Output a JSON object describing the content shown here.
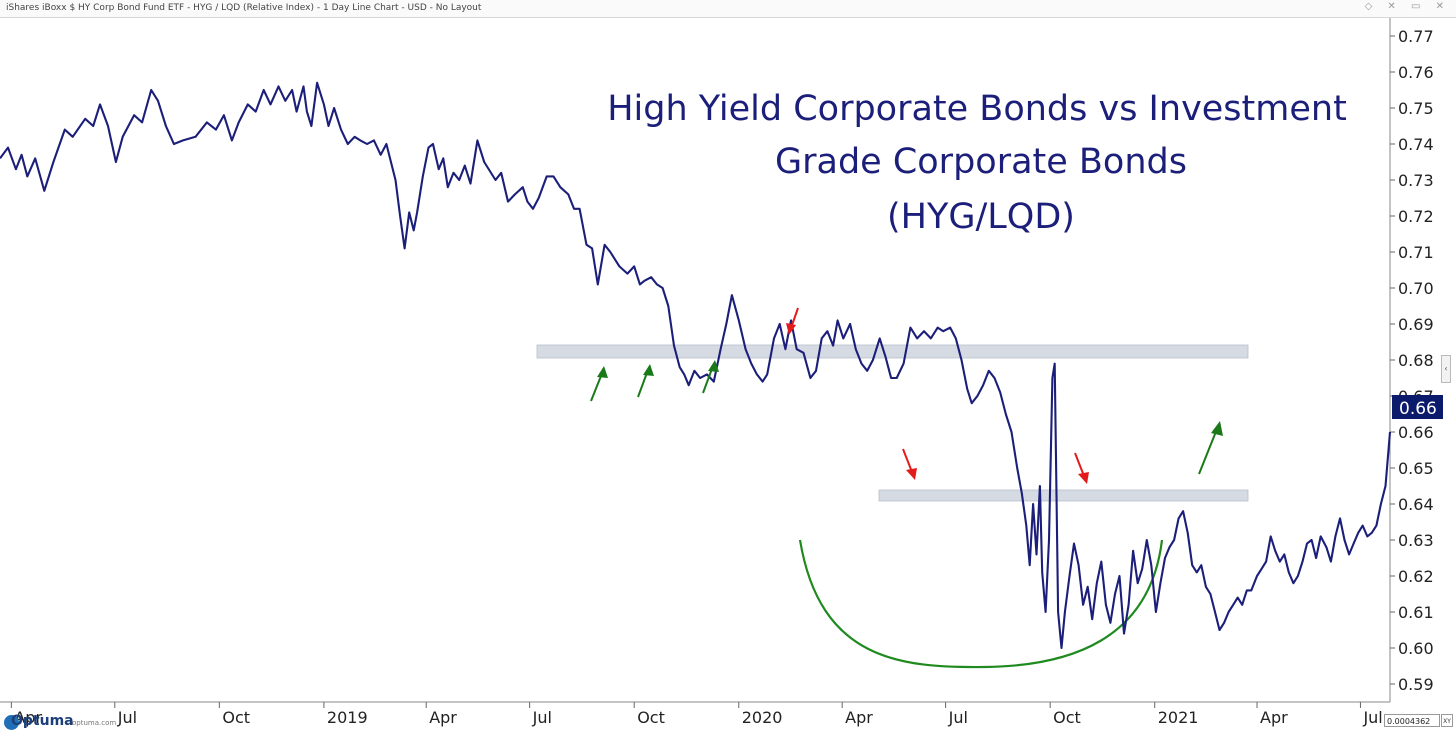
{
  "window": {
    "title": "iShares iBoxx $ HY Corp Bond Fund ETF - HYG / LQD (Relative Index) - 1 Day Line Chart - USD - No Layout"
  },
  "brand": {
    "name": "Optuma",
    "url": "optuma.com"
  },
  "readout": {
    "value": "0.0004362",
    "xy_label": "XY"
  },
  "colors": {
    "line": "#1c1f7a",
    "zone": "#d6dbe3",
    "arrow_red": "#e31b1b",
    "arrow_green": "#1a7a1a",
    "arc": "#1f8a1f",
    "price_badge": "#0b1a6b"
  },
  "chart_data": {
    "type": "line",
    "title": [
      "High Yield Corporate Bonds vs Investment",
      "Grade Corporate Bonds",
      "(HYG/LQD)"
    ],
    "xlabel": "",
    "ylabel": "",
    "ylim": [
      0.585,
      0.775
    ],
    "xlim": [
      "2018-03-22",
      "2021-07-27"
    ],
    "y_ticks": [
      "0.77",
      "0.76",
      "0.75",
      "0.74",
      "0.73",
      "0.72",
      "0.71",
      "0.70",
      "0.69",
      "0.68",
      "0.67",
      "0.66",
      "0.65",
      "0.64",
      "0.63",
      "0.62",
      "0.61",
      "0.60",
      "0.59"
    ],
    "x_ticks": [
      {
        "label": "Apr",
        "date": "2018-04-01"
      },
      {
        "label": "Jul",
        "date": "2018-07-01"
      },
      {
        "label": "Oct",
        "date": "2018-10-01"
      },
      {
        "label": "2019",
        "date": "2019-01-01"
      },
      {
        "label": "Apr",
        "date": "2019-04-01"
      },
      {
        "label": "Jul",
        "date": "2019-07-01"
      },
      {
        "label": "Oct",
        "date": "2019-10-01"
      },
      {
        "label": "2020",
        "date": "2020-01-01"
      },
      {
        "label": "Apr",
        "date": "2020-04-01"
      },
      {
        "label": "Jul",
        "date": "2020-07-01"
      },
      {
        "label": "Oct",
        "date": "2020-10-01"
      },
      {
        "label": "2021",
        "date": "2021-01-01"
      },
      {
        "label": "Apr",
        "date": "2021-04-01"
      },
      {
        "label": "Jul",
        "date": "2021-07-01"
      }
    ],
    "last_value": "0.66",
    "series": [
      {
        "points": [
          [
            "2018-03-22",
            0.736
          ],
          [
            "2018-03-29",
            0.739
          ],
          [
            "2018-04-05",
            0.733
          ],
          [
            "2018-04-10",
            0.737
          ],
          [
            "2018-04-15",
            0.731
          ],
          [
            "2018-04-22",
            0.736
          ],
          [
            "2018-04-30",
            0.727
          ],
          [
            "2018-05-08",
            0.735
          ],
          [
            "2018-05-18",
            0.744
          ],
          [
            "2018-05-25",
            0.742
          ],
          [
            "2018-06-05",
            0.747
          ],
          [
            "2018-06-12",
            0.745
          ],
          [
            "2018-06-18",
            0.751
          ],
          [
            "2018-06-25",
            0.745
          ],
          [
            "2018-07-02",
            0.735
          ],
          [
            "2018-07-08",
            0.742
          ],
          [
            "2018-07-18",
            0.748
          ],
          [
            "2018-07-25",
            0.746
          ],
          [
            "2018-08-02",
            0.755
          ],
          [
            "2018-08-08",
            0.752
          ],
          [
            "2018-08-15",
            0.745
          ],
          [
            "2018-08-22",
            0.74
          ],
          [
            "2018-08-30",
            0.741
          ],
          [
            "2018-09-10",
            0.742
          ],
          [
            "2018-09-20",
            0.746
          ],
          [
            "2018-09-28",
            0.744
          ],
          [
            "2018-10-05",
            0.748
          ],
          [
            "2018-10-12",
            0.741
          ],
          [
            "2018-10-18",
            0.746
          ],
          [
            "2018-10-26",
            0.751
          ],
          [
            "2018-11-02",
            0.749
          ],
          [
            "2018-11-09",
            0.755
          ],
          [
            "2018-11-15",
            0.751
          ],
          [
            "2018-11-22",
            0.756
          ],
          [
            "2018-11-28",
            0.752
          ],
          [
            "2018-12-04",
            0.755
          ],
          [
            "2018-12-08",
            0.749
          ],
          [
            "2018-12-14",
            0.756
          ],
          [
            "2018-12-17",
            0.749
          ],
          [
            "2018-12-21",
            0.745
          ],
          [
            "2018-12-26",
            0.757
          ],
          [
            "2019-01-01",
            0.751
          ],
          [
            "2019-01-05",
            0.745
          ],
          [
            "2019-01-10",
            0.75
          ],
          [
            "2019-01-16",
            0.744
          ],
          [
            "2019-01-22",
            0.74
          ],
          [
            "2019-01-28",
            0.742
          ],
          [
            "2019-02-02",
            0.741
          ],
          [
            "2019-02-08",
            0.74
          ],
          [
            "2019-02-14",
            0.741
          ],
          [
            "2019-02-20",
            0.737
          ],
          [
            "2019-02-25",
            0.74
          ],
          [
            "2019-03-05",
            0.73
          ],
          [
            "2019-03-09",
            0.72
          ],
          [
            "2019-03-13",
            0.711
          ],
          [
            "2019-03-17",
            0.721
          ],
          [
            "2019-03-21",
            0.716
          ],
          [
            "2019-03-24",
            0.721
          ],
          [
            "2019-03-29",
            0.731
          ],
          [
            "2019-04-03",
            0.739
          ],
          [
            "2019-04-07",
            0.74
          ],
          [
            "2019-04-12",
            0.733
          ],
          [
            "2019-04-16",
            0.736
          ],
          [
            "2019-04-20",
            0.728
          ],
          [
            "2019-04-25",
            0.732
          ],
          [
            "2019-04-30",
            0.73
          ],
          [
            "2019-05-05",
            0.734
          ],
          [
            "2019-05-10",
            0.729
          ],
          [
            "2019-05-16",
            0.741
          ],
          [
            "2019-05-22",
            0.735
          ],
          [
            "2019-06-01",
            0.73
          ],
          [
            "2019-06-06",
            0.732
          ],
          [
            "2019-06-12",
            0.724
          ],
          [
            "2019-06-18",
            0.726
          ],
          [
            "2019-06-25",
            0.728
          ],
          [
            "2019-06-29",
            0.724
          ],
          [
            "2019-07-04",
            0.722
          ],
          [
            "2019-07-09",
            0.725
          ],
          [
            "2019-07-16",
            0.731
          ],
          [
            "2019-07-22",
            0.731
          ],
          [
            "2019-07-28",
            0.728
          ],
          [
            "2019-08-04",
            0.726
          ],
          [
            "2019-08-09",
            0.722
          ],
          [
            "2019-08-14",
            0.722
          ],
          [
            "2019-08-20",
            0.712
          ],
          [
            "2019-08-25",
            0.711
          ],
          [
            "2019-08-30",
            0.701
          ],
          [
            "2019-09-05",
            0.712
          ],
          [
            "2019-09-10",
            0.71
          ],
          [
            "2019-09-18",
            0.706
          ],
          [
            "2019-09-25",
            0.704
          ],
          [
            "2019-10-01",
            0.706
          ],
          [
            "2019-10-06",
            0.701
          ],
          [
            "2019-10-10",
            0.702
          ],
          [
            "2019-10-16",
            0.703
          ],
          [
            "2019-10-21",
            0.701
          ],
          [
            "2019-10-26",
            0.7
          ],
          [
            "2019-10-31",
            0.695
          ],
          [
            "2019-11-05",
            0.684
          ],
          [
            "2019-11-10",
            0.678
          ],
          [
            "2019-11-14",
            0.676
          ],
          [
            "2019-11-18",
            0.673
          ],
          [
            "2019-11-23",
            0.677
          ],
          [
            "2019-11-28",
            0.675
          ],
          [
            "2019-12-04",
            0.676
          ],
          [
            "2019-12-10",
            0.674
          ],
          [
            "2019-12-16",
            0.683
          ],
          [
            "2019-12-21",
            0.69
          ],
          [
            "2019-12-26",
            0.698
          ],
          [
            "2020-01-01",
            0.691
          ],
          [
            "2020-01-07",
            0.683
          ],
          [
            "2020-01-12",
            0.679
          ],
          [
            "2020-01-17",
            0.676
          ],
          [
            "2020-01-22",
            0.674
          ],
          [
            "2020-01-26",
            0.676
          ],
          [
            "2020-02-01",
            0.686
          ],
          [
            "2020-02-06",
            0.69
          ],
          [
            "2020-02-11",
            0.683
          ],
          [
            "2020-02-16",
            0.691
          ],
          [
            "2020-02-21",
            0.683
          ],
          [
            "2020-02-27",
            0.682
          ],
          [
            "2020-03-04",
            0.675
          ],
          [
            "2020-03-09",
            0.677
          ],
          [
            "2020-03-14",
            0.686
          ],
          [
            "2020-03-19",
            0.688
          ],
          [
            "2020-03-24",
            0.684
          ],
          [
            "2020-03-28",
            0.691
          ],
          [
            "2020-04-02",
            0.686
          ],
          [
            "2020-04-08",
            0.69
          ],
          [
            "2020-04-13",
            0.683
          ],
          [
            "2020-04-18",
            0.679
          ],
          [
            "2020-04-23",
            0.677
          ],
          [
            "2020-04-28",
            0.68
          ],
          [
            "2020-05-04",
            0.686
          ],
          [
            "2020-05-09",
            0.681
          ],
          [
            "2020-05-14",
            0.675
          ],
          [
            "2020-05-19",
            0.675
          ],
          [
            "2020-05-25",
            0.679
          ],
          [
            "2020-05-31",
            0.689
          ],
          [
            "2020-06-06",
            0.686
          ],
          [
            "2020-06-12",
            0.688
          ],
          [
            "2020-06-18",
            0.686
          ],
          [
            "2020-06-24",
            0.689
          ],
          [
            "2020-06-29",
            0.688
          ],
          [
            "2020-07-05",
            0.689
          ],
          [
            "2020-07-10",
            0.686
          ],
          [
            "2020-07-15",
            0.68
          ],
          [
            "2020-07-20",
            0.672
          ],
          [
            "2020-07-24",
            0.668
          ],
          [
            "2020-07-29",
            0.67
          ],
          [
            "2020-08-03",
            0.673
          ],
          [
            "2020-08-08",
            0.677
          ],
          [
            "2020-08-13",
            0.675
          ],
          [
            "2020-08-18",
            0.671
          ],
          [
            "2020-08-23",
            0.665
          ],
          [
            "2020-08-28",
            0.66
          ],
          [
            "2020-09-02",
            0.65
          ],
          [
            "2020-09-06",
            0.643
          ],
          [
            "2020-09-10",
            0.634
          ],
          [
            "2020-09-13",
            0.623
          ],
          [
            "2020-09-16",
            0.64
          ],
          [
            "2020-09-19",
            0.626
          ],
          [
            "2020-09-22",
            0.645
          ],
          [
            "2020-09-24",
            0.621
          ],
          [
            "2020-09-27",
            0.61
          ],
          [
            "2020-09-30",
            0.63
          ],
          [
            "2020-10-03",
            0.675
          ],
          [
            "2020-10-05",
            0.679
          ],
          [
            "2020-10-08",
            0.61
          ],
          [
            "2020-10-11",
            0.6
          ],
          [
            "2020-10-14",
            0.61
          ],
          [
            "2020-10-18",
            0.62
          ],
          [
            "2020-10-22",
            0.629
          ],
          [
            "2020-10-26",
            0.623
          ],
          [
            "2020-10-30",
            0.612
          ],
          [
            "2020-11-03",
            0.617
          ],
          [
            "2020-11-07",
            0.608
          ],
          [
            "2020-11-11",
            0.618
          ],
          [
            "2020-11-15",
            0.624
          ],
          [
            "2020-11-19",
            0.612
          ],
          [
            "2020-11-23",
            0.607
          ],
          [
            "2020-11-27",
            0.615
          ],
          [
            "2020-12-01",
            0.62
          ],
          [
            "2020-12-05",
            0.604
          ],
          [
            "2020-12-09",
            0.612
          ],
          [
            "2020-12-13",
            0.627
          ],
          [
            "2020-12-17",
            0.618
          ],
          [
            "2020-12-21",
            0.622
          ],
          [
            "2020-12-25",
            0.63
          ],
          [
            "2020-12-29",
            0.623
          ],
          [
            "2021-01-02",
            0.61
          ],
          [
            "2021-01-06",
            0.618
          ],
          [
            "2021-01-10",
            0.625
          ],
          [
            "2021-01-14",
            0.628
          ],
          [
            "2021-01-18",
            0.63
          ],
          [
            "2021-01-22",
            0.636
          ],
          [
            "2021-01-26",
            0.638
          ],
          [
            "2021-01-30",
            0.632
          ],
          [
            "2021-02-03",
            0.623
          ],
          [
            "2021-02-07",
            0.621
          ],
          [
            "2021-02-11",
            0.623
          ],
          [
            "2021-02-15",
            0.617
          ],
          [
            "2021-02-19",
            0.615
          ],
          [
            "2021-02-23",
            0.61
          ],
          [
            "2021-02-27",
            0.605
          ],
          [
            "2021-03-03",
            0.607
          ],
          [
            "2021-03-07",
            0.61
          ],
          [
            "2021-03-11",
            0.612
          ],
          [
            "2021-03-15",
            0.614
          ],
          [
            "2021-03-19",
            0.612
          ],
          [
            "2021-03-23",
            0.616
          ],
          [
            "2021-03-27",
            0.616
          ],
          [
            "2021-04-01",
            0.62
          ],
          [
            "2021-04-05",
            0.622
          ],
          [
            "2021-04-09",
            0.624
          ],
          [
            "2021-04-13",
            0.631
          ],
          [
            "2021-04-17",
            0.627
          ],
          [
            "2021-04-21",
            0.624
          ],
          [
            "2021-04-25",
            0.626
          ],
          [
            "2021-04-29",
            0.621
          ],
          [
            "2021-05-03",
            0.618
          ],
          [
            "2021-05-07",
            0.62
          ],
          [
            "2021-05-11",
            0.624
          ],
          [
            "2021-05-15",
            0.629
          ],
          [
            "2021-05-19",
            0.63
          ],
          [
            "2021-05-23",
            0.625
          ],
          [
            "2021-05-27",
            0.631
          ],
          [
            "2021-06-01",
            0.628
          ],
          [
            "2021-06-05",
            0.624
          ],
          [
            "2021-06-09",
            0.631
          ],
          [
            "2021-06-13",
            0.636
          ],
          [
            "2021-06-17",
            0.63
          ],
          [
            "2021-06-21",
            0.626
          ],
          [
            "2021-06-25",
            0.629
          ],
          [
            "2021-06-29",
            0.632
          ],
          [
            "2021-07-03",
            0.634
          ],
          [
            "2021-07-07",
            0.631
          ],
          [
            "2021-07-11",
            0.632
          ],
          [
            "2021-07-15",
            0.634
          ],
          [
            "2021-07-19",
            0.64
          ],
          [
            "2021-07-23",
            0.645
          ],
          [
            "2021-07-27",
            0.66
          ]
        ]
      }
    ]
  }
}
